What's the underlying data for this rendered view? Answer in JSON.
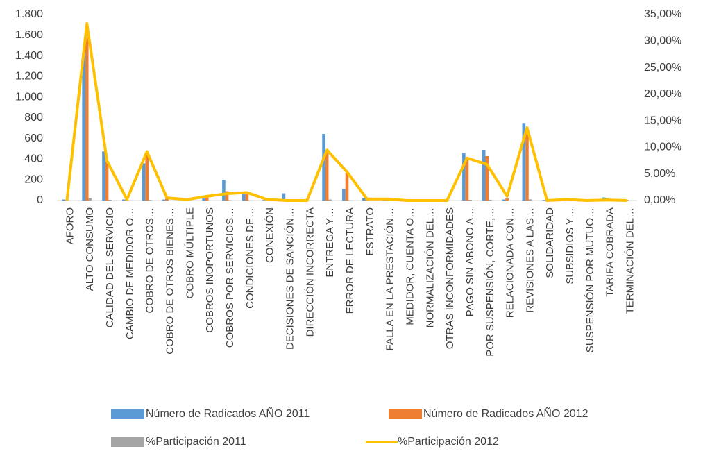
{
  "chart_data": {
    "type": "bar",
    "categories": [
      "AFORO",
      "ALTO CONSUMO",
      "CALIDAD DEL SERVICIO",
      "CAMBIO DE MEDIDOR O…",
      "COBRO DE OTROS…",
      "COBRO DE OTROS BIENES…",
      "COBRO MÚLTIPLE",
      "COBROS INOPORTUNOS",
      "COBROS POR SERVICIOS…",
      "CONDICIONES DE…",
      "CONEXIÓN",
      "DECISIONES DE SANCIÓN…",
      "DIRECCIÓN INCORRECTA",
      "ENTREGA Y…",
      "ERROR DE LECTURA",
      "ESTRATO",
      "FALLA EN LA PRESTACIÓN…",
      "MEDIDOR, CUENTA O…",
      "NORMALIZACIÓN DEL…",
      "OTRAS INCONFORMIDADES",
      "PAGO SIN ABONO A…",
      "POR SUSPENSIÓN, CORTE,…",
      "RELACIONADA CON…",
      "REVISIONES A LAS…",
      "SOLIDARIDAD",
      "SUBSIDIOS Y…",
      "SUSPENSIÓN POR MUTUO…",
      "TARIFA COBRADA",
      "TERMINACIÓN DEL…"
    ],
    "series": [
      {
        "name": "Número de Radicados AÑO 2011",
        "type": "bar",
        "color": "#5b9bd5",
        "values": [
          10,
          1440,
          475,
          10,
          360,
          10,
          5,
          20,
          200,
          60,
          5,
          70,
          10,
          645,
          115,
          20,
          5,
          10,
          10,
          10,
          460,
          490,
          10,
          750,
          5,
          5,
          5,
          30,
          5
        ]
      },
      {
        "name": "Número de Radicados AÑO 2012",
        "type": "bar",
        "color": "#ed7d31",
        "values": [
          5,
          1580,
          380,
          5,
          450,
          30,
          5,
          40,
          90,
          60,
          5,
          5,
          5,
          470,
          270,
          10,
          5,
          10,
          10,
          5,
          400,
          430,
          20,
          660,
          5,
          5,
          5,
          20,
          5
        ]
      },
      {
        "name": "%Participación  2011",
        "type": "bar",
        "color": "#a5a5a5",
        "values": [
          0.15,
          21.7,
          7.2,
          0.15,
          5.4,
          0.15,
          0.08,
          0.3,
          3,
          0.9,
          0.08,
          1.06,
          0.15,
          9.7,
          1.7,
          0.3,
          0.08,
          0.15,
          0.15,
          0.15,
          6.9,
          7.4,
          0.15,
          11.3,
          0.08,
          0.08,
          0.08,
          0.45,
          0.08
        ]
      },
      {
        "name": "%Participación  2012",
        "type": "line",
        "axis": "y2",
        "color": "#ffc000",
        "values": [
          0,
          33.3,
          7.5,
          0.2,
          9.2,
          0.5,
          0.2,
          0.8,
          1.3,
          1.5,
          0.2,
          0,
          0,
          9.5,
          5.4,
          0.3,
          0.3,
          0,
          0,
          0,
          8,
          6.8,
          0.8,
          13.7,
          0,
          0.2,
          0,
          0.1,
          0
        ]
      }
    ],
    "ylim": [
      0,
      1800
    ],
    "yticks": [
      0,
      200,
      400,
      600,
      800,
      {
        "value": 1000,
        "label": "1.000"
      },
      {
        "value": 1200,
        "label": "1.200"
      },
      {
        "value": 1400,
        "label": "1.400"
      },
      {
        "value": 1600,
        "label": "1.600"
      },
      {
        "value": 1800,
        "label": "1.800"
      }
    ],
    "y2lim": [
      0,
      35
    ],
    "y2ticks": [
      {
        "value": 0,
        "label": "0,00%"
      },
      {
        "value": 5,
        "label": "5,00%"
      },
      {
        "value": 10,
        "label": "10,00%"
      },
      {
        "value": 15,
        "label": "15,00%"
      },
      {
        "value": 20,
        "label": "20,00%"
      },
      {
        "value": 25,
        "label": "25,00%"
      },
      {
        "value": 30,
        "label": "30,00%"
      },
      {
        "value": 35,
        "label": "35,00%"
      }
    ],
    "grid": false,
    "legend": "bottom"
  }
}
